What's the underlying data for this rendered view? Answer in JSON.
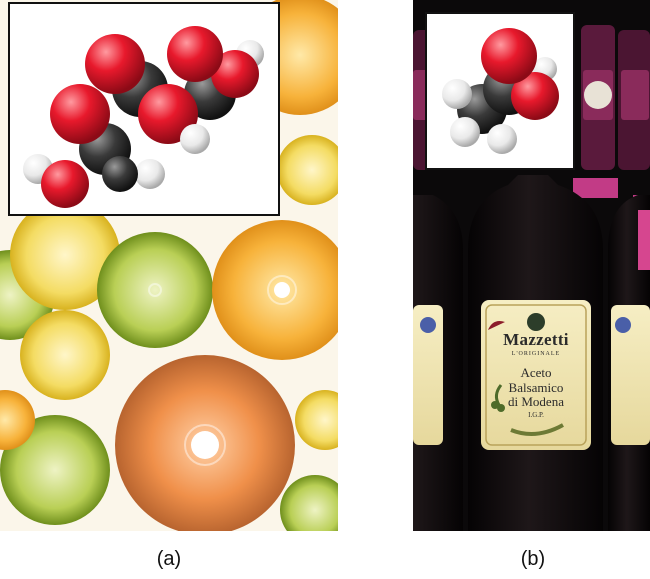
{
  "panels": [
    {
      "caption": "(a)"
    },
    {
      "caption": "(b)"
    }
  ],
  "bottle_label": {
    "brand": "Mazzetti",
    "subtitle": "L'ORIGINALE",
    "line1": "Aceto",
    "line2": "Balsamico",
    "line3": "di Modena",
    "line4": "I.G.P."
  },
  "colors": {
    "oxygen": "#e8192c",
    "carbon": "#3a3a3a",
    "hydrogen": "#f2f2f2",
    "orange": "#f5a623",
    "lime": "#a9c13a",
    "lemon": "#f2d64b",
    "grapefruit": "#e8863a"
  }
}
